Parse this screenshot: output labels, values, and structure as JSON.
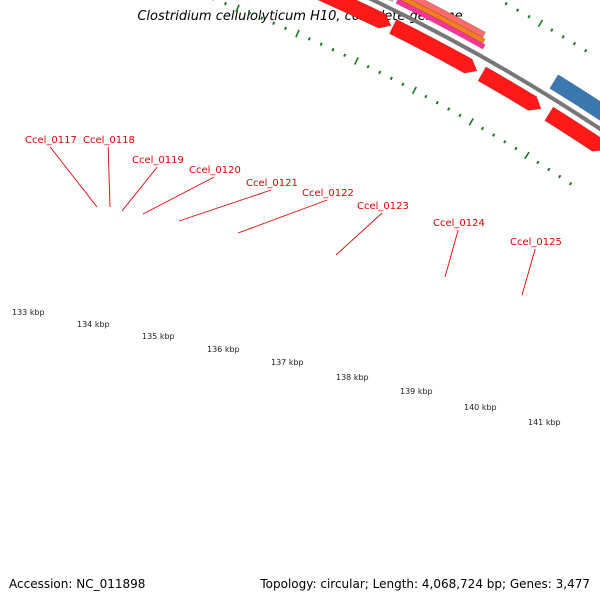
{
  "title": "Clostridium cellulolyticum H10, complete genome",
  "footer": {
    "accession": "Accession: NC_011898",
    "summary": "Topology: circular; Length: 4,068,724 bp; Genes: 3,477"
  },
  "colors": {
    "gene": "#ff1a1a",
    "gene_dark": "#c80000",
    "pseudo_gray": "#c4c4c4",
    "rna_orange": "#f08020",
    "rna_pink": "#ff3399",
    "blue_feature": "#3c78b0",
    "backbone": "#777777",
    "tick": "#1a7a1a",
    "label": "#e00000"
  },
  "gene_labels": [
    "Ccel_0117",
    "Ccel_0118",
    "Ccel_0119",
    "Ccel_0120",
    "Ccel_0121",
    "Ccel_0122",
    "Ccel_0123",
    "Ccel_0124",
    "Ccel_0125"
  ],
  "kbp_labels": [
    "133 kbp",
    "134 kbp",
    "135 kbp",
    "136 kbp",
    "137 kbp",
    "138 kbp",
    "139 kbp",
    "140 kbp",
    "141 kbp"
  ]
}
